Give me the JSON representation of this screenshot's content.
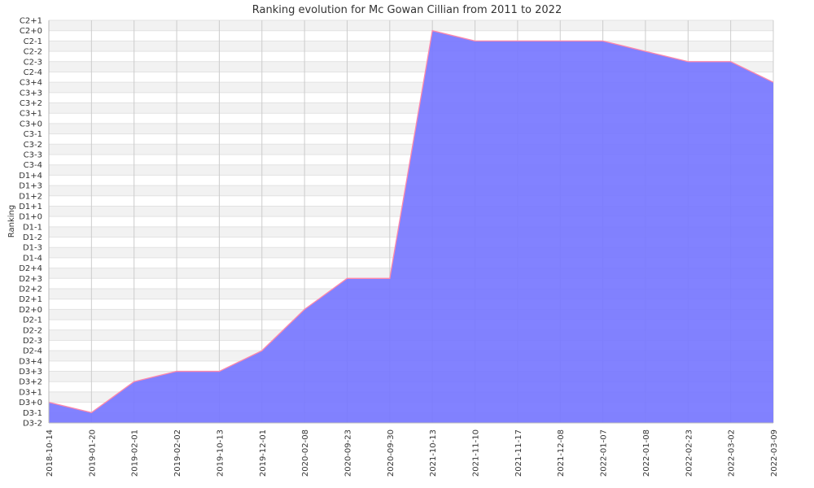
{
  "chart_data": {
    "type": "area",
    "title": "Ranking evolution for Mc Gowan Cillian from 2011 to 2022",
    "xlabel": "",
    "ylabel": "Ranking",
    "y_categories": [
      "D3-2",
      "D3-1",
      "D3+0",
      "D3+1",
      "D3+2",
      "D3+3",
      "D3+4",
      "D2-4",
      "D2-3",
      "D2-2",
      "D2-1",
      "D2+0",
      "D2+1",
      "D2+2",
      "D2+3",
      "D2+4",
      "D1-4",
      "D1-3",
      "D1-2",
      "D1-1",
      "D1+0",
      "D1+1",
      "D1+2",
      "D1+3",
      "D1+4",
      "C3-4",
      "C3-3",
      "C3-2",
      "C3-1",
      "C3+0",
      "C3+1",
      "C3+2",
      "C3+3",
      "C3+4",
      "C2-4",
      "C2-3",
      "C2-2",
      "C2-1",
      "C2+0",
      "C2+1"
    ],
    "x": [
      "2018-10-14",
      "2019-01-20",
      "2019-02-01",
      "2019-02-02",
      "2019-10-13",
      "2019-12-01",
      "2020-02-08",
      "2020-09-23",
      "2020-09-30",
      "2021-10-13",
      "2021-11-10",
      "2021-11-17",
      "2021-12-08",
      "2022-01-07",
      "2022-01-08",
      "2022-02-23",
      "2022-03-02",
      "2022-03-09"
    ],
    "series": [
      {
        "values": [
          "D3+0",
          "D3-1",
          "D3+2",
          "D3+3",
          "D3+3",
          "D2-4",
          "D2+0",
          "D2+3",
          "D2+3",
          "C2+0",
          "C2-1",
          "C2-1",
          "C2-1",
          "C2-1",
          "C2-2",
          "C2-3",
          "C2-3",
          "C3+4"
        ]
      }
    ],
    "grid": true,
    "fill_color": "#7777ff",
    "line_color": "#ff88aa"
  }
}
